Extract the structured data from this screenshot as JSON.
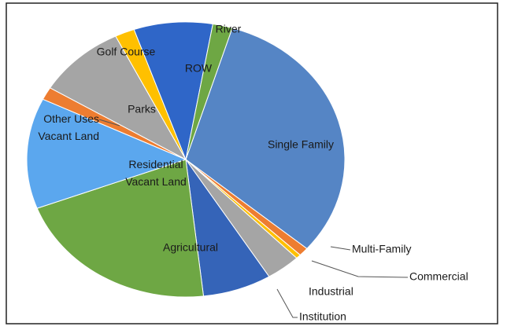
{
  "chart_data": {
    "type": "pie",
    "categories": [
      "Single Family",
      "Multi-Family",
      "Commercial",
      "Industrial",
      "Institution",
      "Agricultural",
      "Residential Vacant Land",
      "Other Uses Vacant Land",
      "Parks",
      "Golf Course",
      "ROW",
      "River"
    ],
    "values": [
      31.5,
      1,
      0.5,
      3.5,
      7,
      21,
      13,
      1.5,
      9,
      2,
      8,
      2
    ],
    "colors": [
      "#5585c5",
      "#ed7d31",
      "#ffc000",
      "#a5a5a5",
      "#3564b8",
      "#6ea744",
      "#5ba7ee",
      "#ed7d31",
      "#a5a5a5",
      "#ffc000",
      "#2f66c8",
      "#6ea744"
    ]
  }
}
